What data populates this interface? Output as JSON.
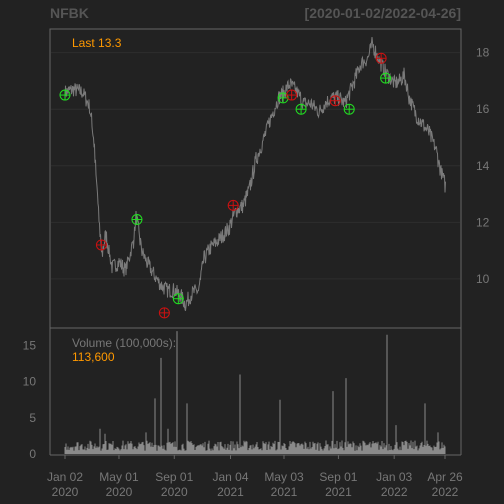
{
  "header": {
    "symbol": "NFBK",
    "range": "[2020-01-02/2022-04-26]"
  },
  "annotations": {
    "last_label": "Last 13.3",
    "volume_label": "Volume (100,000s):",
    "volume_value": "113,600"
  },
  "colors": {
    "background": "#222222",
    "panel_border": "#666666",
    "price_line": "#7a7a7a",
    "accent": "#ff9900",
    "buy_marker": "#22dd22",
    "sell_marker": "#cc1111",
    "axis_text": "#777777",
    "grid": "#2e2e2e"
  },
  "chart_data": [
    {
      "type": "line",
      "title": "NFBK",
      "subtitle": "[2020-01-02/2022-04-26]",
      "x_ticks": [
        {
          "date": "2020-01-02",
          "label": [
            "Jan 02",
            "2020"
          ]
        },
        {
          "date": "2020-05-01",
          "label": [
            "May 01",
            "2020"
          ]
        },
        {
          "date": "2020-09-01",
          "label": [
            "Sep 01",
            "2020"
          ]
        },
        {
          "date": "2021-01-04",
          "label": [
            "Jan 04",
            "2021"
          ]
        },
        {
          "date": "2021-05-03",
          "label": [
            "May 03",
            "2021"
          ]
        },
        {
          "date": "2021-09-01",
          "label": [
            "Sep 01",
            "2021"
          ]
        },
        {
          "date": "2022-01-03",
          "label": [
            "Jan 03",
            "2022"
          ]
        },
        {
          "date": "2022-04-26",
          "label": [
            "Apr 26",
            "2022"
          ]
        }
      ],
      "y_ticks": [
        10,
        12,
        14,
        16,
        18
      ],
      "ylim": [
        8.3,
        18.8
      ],
      "x_range": [
        "2020-01-02",
        "2022-04-26"
      ],
      "last_value": 13.3,
      "series": [
        {
          "values": [
            [
              "2020-01-02",
              16.6
            ],
            [
              "2020-01-20",
              16.7
            ],
            [
              "2020-02-10",
              16.6
            ],
            [
              "2020-02-25",
              16.1
            ],
            [
              "2020-03-06",
              14.9
            ],
            [
              "2020-03-16",
              12.3
            ],
            [
              "2020-03-23",
              10.8
            ],
            [
              "2020-04-01",
              11.6
            ],
            [
              "2020-04-15",
              10.4
            ],
            [
              "2020-05-01",
              10.6
            ],
            [
              "2020-05-15",
              10.3
            ],
            [
              "2020-06-01",
              11.3
            ],
            [
              "2020-06-08",
              12.2
            ],
            [
              "2020-06-20",
              11.0
            ],
            [
              "2020-07-01",
              10.6
            ],
            [
              "2020-07-15",
              10.2
            ],
            [
              "2020-08-01",
              9.8
            ],
            [
              "2020-08-15",
              9.6
            ],
            [
              "2020-09-01",
              9.6
            ],
            [
              "2020-09-15",
              9.4
            ],
            [
              "2020-09-25",
              9.1
            ],
            [
              "2020-10-10",
              9.5
            ],
            [
              "2020-10-25",
              9.6
            ],
            [
              "2020-11-05",
              10.7
            ],
            [
              "2020-11-20",
              11.1
            ],
            [
              "2020-12-10",
              11.4
            ],
            [
              "2020-12-31",
              11.8
            ],
            [
              "2021-01-15",
              12.4
            ],
            [
              "2021-02-01",
              12.6
            ],
            [
              "2021-02-15",
              13.2
            ],
            [
              "2021-03-01",
              14.2
            ],
            [
              "2021-03-15",
              14.8
            ],
            [
              "2021-04-01",
              15.6
            ],
            [
              "2021-04-20",
              16.4
            ],
            [
              "2021-05-03",
              16.6
            ],
            [
              "2021-05-15",
              16.9
            ],
            [
              "2021-06-01",
              16.6
            ],
            [
              "2021-06-15",
              16.2
            ],
            [
              "2021-07-01",
              16.2
            ],
            [
              "2021-07-20",
              15.9
            ],
            [
              "2021-08-01",
              16.2
            ],
            [
              "2021-08-15",
              16.4
            ],
            [
              "2021-09-01",
              16.4
            ],
            [
              "2021-09-15",
              16.2
            ],
            [
              "2021-10-01",
              16.8
            ],
            [
              "2021-10-20",
              17.6
            ],
            [
              "2021-11-05",
              17.8
            ],
            [
              "2021-11-15",
              18.3
            ],
            [
              "2021-12-01",
              17.7
            ],
            [
              "2021-12-15",
              17.3
            ],
            [
              "2022-01-03",
              16.9
            ],
            [
              "2022-01-15",
              17.0
            ],
            [
              "2022-01-25",
              17.2
            ],
            [
              "2022-02-05",
              16.4
            ],
            [
              "2022-02-20",
              15.8
            ],
            [
              "2022-03-05",
              15.5
            ],
            [
              "2022-03-20",
              15.2
            ],
            [
              "2022-04-05",
              14.6
            ],
            [
              "2022-04-15",
              13.9
            ],
            [
              "2022-04-26",
              13.3
            ]
          ]
        }
      ],
      "markers": [
        {
          "kind": "buy",
          "x": "2020-01-02",
          "y": 16.5
        },
        {
          "kind": "sell",
          "x": "2020-03-23",
          "y": 11.2
        },
        {
          "kind": "buy",
          "x": "2020-06-10",
          "y": 12.1
        },
        {
          "kind": "sell",
          "x": "2020-08-10",
          "y": 8.8
        },
        {
          "kind": "buy",
          "x": "2020-09-10",
          "y": 9.3
        },
        {
          "kind": "sell",
          "x": "2021-01-10",
          "y": 12.6
        },
        {
          "kind": "buy",
          "x": "2021-05-01",
          "y": 16.4
        },
        {
          "kind": "sell",
          "x": "2021-05-20",
          "y": 16.5
        },
        {
          "kind": "buy",
          "x": "2021-06-10",
          "y": 16.0
        },
        {
          "kind": "sell",
          "x": "2021-08-25",
          "y": 16.3
        },
        {
          "kind": "buy",
          "x": "2021-09-25",
          "y": 16.0
        },
        {
          "kind": "sell",
          "x": "2021-12-05",
          "y": 17.8
        },
        {
          "kind": "buy",
          "x": "2021-12-15",
          "y": 17.1
        }
      ]
    },
    {
      "type": "bar",
      "title": "Volume (100,000s):",
      "last_value": 113600,
      "y_ticks": [
        0,
        5,
        10,
        15
      ],
      "ylim": [
        0,
        17.3
      ],
      "base_level": 1.3,
      "spikes": [
        [
          "2020-03-20",
          3.5
        ],
        [
          "2020-04-01",
          2.8
        ],
        [
          "2020-06-30",
          3.0
        ],
        [
          "2020-07-20",
          7.7
        ],
        [
          "2020-08-03",
          13.3
        ],
        [
          "2020-08-17",
          3.5
        ],
        [
          "2020-09-08",
          17.0
        ],
        [
          "2020-09-30",
          7.0
        ],
        [
          "2021-01-25",
          11.0
        ],
        [
          "2021-04-25",
          7.5
        ],
        [
          "2021-08-20",
          8.7
        ],
        [
          "2021-09-18",
          10.5
        ],
        [
          "2021-12-18",
          16.5
        ],
        [
          "2022-01-07",
          4.0
        ],
        [
          "2022-03-12",
          7.0
        ],
        [
          "2022-04-10",
          3.0
        ]
      ]
    }
  ]
}
